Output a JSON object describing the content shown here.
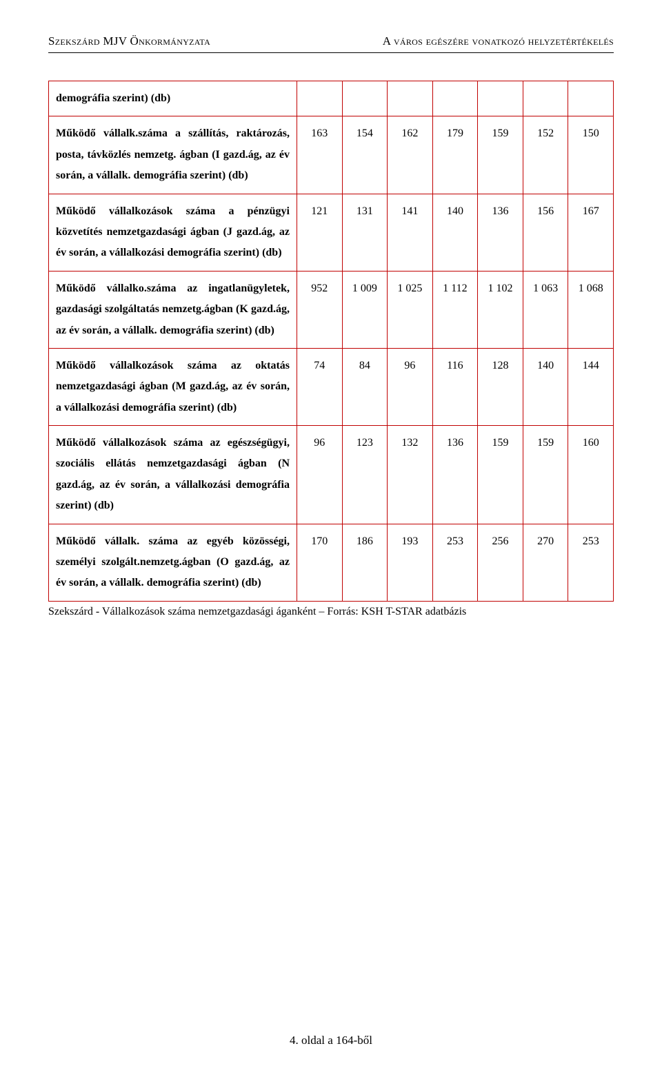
{
  "header": {
    "left": "Szekszárd MJV Önkormányzata",
    "right": "A város egészére vonatkozó helyzetértékelés"
  },
  "table": {
    "colors": {
      "border": "#c00000",
      "text": "#000000",
      "background": "#ffffff"
    },
    "rows": [
      {
        "label": "demográfia szerint) (db)",
        "values": [
          "",
          "",
          "",
          "",
          "",
          "",
          ""
        ]
      },
      {
        "label": "Működő vállalk.száma a szállítás, raktározás, posta, távközlés nemzetg. ágban (I gazd.ág, az év során, a vállalk. demográfia szerint) (db)",
        "values": [
          "163",
          "154",
          "162",
          "179",
          "159",
          "152",
          "150"
        ]
      },
      {
        "label": "Működő vállalkozások száma a pénzügyi közvetítés nemzetgazdasági ágban (J gazd.ág, az év során, a vállalkozási demográfia szerint) (db)",
        "values": [
          "121",
          "131",
          "141",
          "140",
          "136",
          "156",
          "167"
        ]
      },
      {
        "label": "Működő vállalko.száma az ingatlanügyletek, gazdasági szolgáltatás nemzetg.ágban (K gazd.ág, az év során, a vállalk. demográfia szerint) (db)",
        "values": [
          "952",
          "1 009",
          "1 025",
          "1 112",
          "1 102",
          "1 063",
          "1 068"
        ]
      },
      {
        "label": "Működő vállalkozások száma az oktatás nemzetgazdasági ágban (M gazd.ág, az év során, a vállalkozási demográfia szerint) (db)",
        "values": [
          "74",
          "84",
          "96",
          "116",
          "128",
          "140",
          "144"
        ]
      },
      {
        "label": "Működő vállalkozások száma az egészségügyi, szociális ellátás nemzetgazdasági ágban (N gazd.ág, az év során, a vállalkozási demográfia szerint) (db)",
        "values": [
          "96",
          "123",
          "132",
          "136",
          "159",
          "159",
          "160"
        ]
      },
      {
        "label": "Működő vállalk. száma az egyéb közösségi, személyi szolgált.nemzetg.ágban (O gazd.ág, az év során, a vállalk. demográfia szerint) (db)",
        "values": [
          "170",
          "186",
          "193",
          "253",
          "256",
          "270",
          "253"
        ]
      }
    ],
    "caption": "Szekszárd - Vállalkozások száma nemzetgazdasági áganként – Forrás: KSH T-STAR adatbázis"
  },
  "footer": "4. oldal a 164-ből"
}
